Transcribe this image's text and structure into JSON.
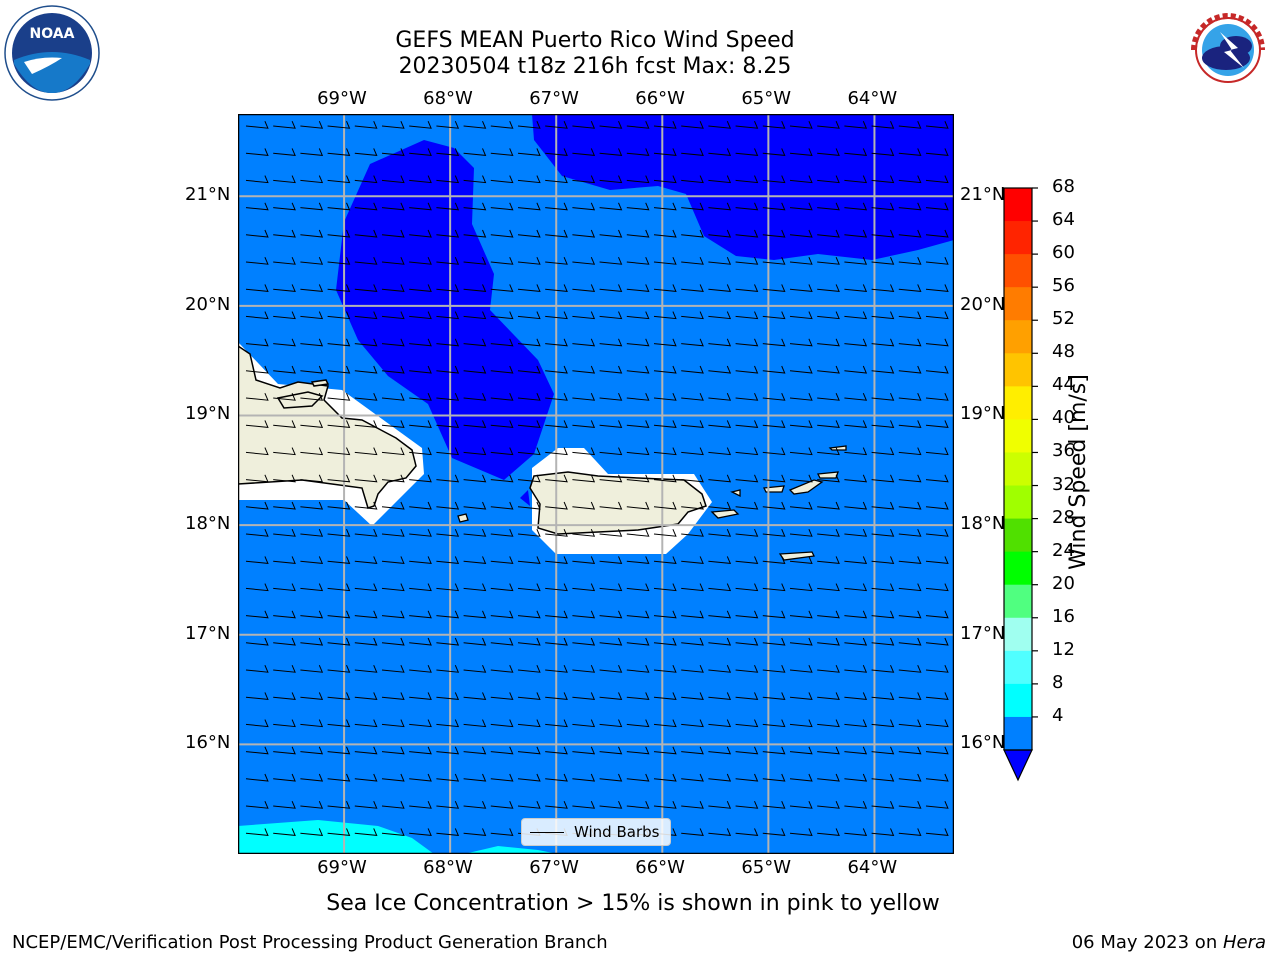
{
  "header": {
    "title_line1": "GEFS MEAN Puerto Rico Wind Speed",
    "title_line2": "20230504 t18z 216h fcst   Max: 8.25"
  },
  "subtitle": "Sea Ice Concentration > 15% is shown in pink to yellow",
  "footer": {
    "left": "NCEP/EMC/Verification Post Processing Product Generation Branch",
    "right_date": "06 May 2023 on ",
    "right_host": "Hera"
  },
  "logos": {
    "left": {
      "name": "noaa-logo",
      "text": "NOAA"
    },
    "right": {
      "name": "nws-logo",
      "text": "NATIONAL WEATHER SERVICE"
    }
  },
  "map": {
    "lon_ticks": [
      "69°W",
      "68°W",
      "67°W",
      "66°W",
      "65°W",
      "64°W"
    ],
    "lat_ticks": [
      "21°N",
      "20°N",
      "19°N",
      "18°N",
      "17°N",
      "16°N"
    ],
    "lon_range": [
      -70,
      -63.25
    ],
    "lat_range": [
      15,
      21.75
    ],
    "legend_label": "Wind Barbs",
    "colors": {
      "ocean_fill": "#0080ff",
      "low_wind": "#0000ff",
      "high_band": "#00ffff",
      "land": "#efefdc"
    }
  },
  "colorbar": {
    "label": "Wind Speed [m/s]",
    "ticks": [
      "68",
      "64",
      "60",
      "56",
      "52",
      "48",
      "44",
      "40",
      "36",
      "32",
      "28",
      "24",
      "20",
      "16",
      "12",
      "8",
      "4"
    ],
    "colors": [
      "#ff0000",
      "#ff2400",
      "#ff5000",
      "#ff7c00",
      "#ffa000",
      "#ffc400",
      "#ffee00",
      "#f0ff00",
      "#ccff00",
      "#a0ff00",
      "#50e000",
      "#00ff00",
      "#50ff80",
      "#a0fff0",
      "#50ffff",
      "#00ffff",
      "#0080ff"
    ],
    "under_color": "#0000ff"
  }
}
